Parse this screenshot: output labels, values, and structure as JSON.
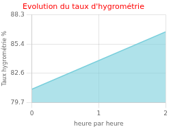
{
  "chart_data": {
    "type": "area",
    "title": "Evolution du taux d'hygrométrie",
    "xlabel": "heure par heure",
    "ylabel": "Taux hygrométrie %",
    "x": [
      0,
      2
    ],
    "values": [
      81.0,
      86.6
    ],
    "color": "#7acfdc",
    "xlim": [
      0,
      2
    ],
    "xticks": [
      0,
      1,
      2
    ],
    "ylim": [
      79.7,
      88.3
    ],
    "yticks": [
      79.7,
      82.6,
      85.4,
      88.3
    ],
    "grid": true
  }
}
